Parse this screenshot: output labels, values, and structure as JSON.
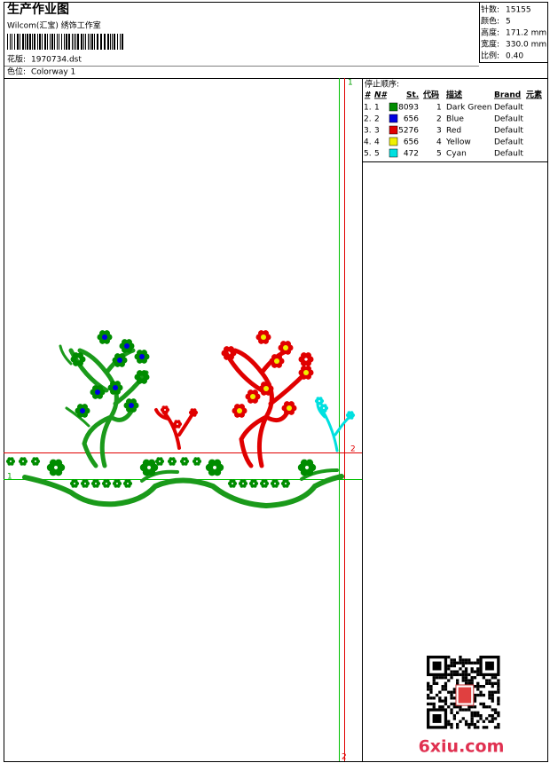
{
  "header": {
    "title": "生产作业图",
    "studio": "Wilcom(汇宝) 绣饰工作室",
    "design_label": "花版:",
    "design": "1970734.dst",
    "colorway_label": "色位:",
    "colorway": "Colorway 1"
  },
  "stats": [
    {
      "label": "针数:",
      "value": "15155"
    },
    {
      "label": "颜色:",
      "value": "5"
    },
    {
      "label": "高度:",
      "value": "171.2 mm"
    },
    {
      "label": "宽度:",
      "value": "330.0 mm"
    },
    {
      "label": "比例:",
      "value": "0.40"
    }
  ],
  "stop_sequence": {
    "title": "停止顺序:",
    "columns": [
      "#",
      "N#",
      "St.",
      "代码",
      "描述",
      "Brand",
      "元素"
    ],
    "rows": [
      {
        "index": "1.",
        "needle": "1",
        "color": "#008c00",
        "stitches": "8093",
        "code": "1",
        "description": "Dark Green",
        "brand": "Default"
      },
      {
        "index": "2.",
        "needle": "2",
        "color": "#0000e0",
        "stitches": "656",
        "code": "2",
        "description": "Blue",
        "brand": "Default"
      },
      {
        "index": "3.",
        "needle": "3",
        "color": "#e00000",
        "stitches": "5276",
        "code": "3",
        "description": "Red",
        "brand": "Default"
      },
      {
        "index": "4.",
        "needle": "4",
        "color": "#f0f000",
        "stitches": "656",
        "code": "4",
        "description": "Yellow",
        "brand": "Default"
      },
      {
        "index": "5.",
        "needle": "5",
        "color": "#00e0e0",
        "stitches": "472",
        "code": "5",
        "description": "Cyan",
        "brand": "Default"
      }
    ]
  },
  "guides": {
    "vertical_top": "1",
    "vertical_bottom": "2",
    "horizontal_red": "2",
    "horizontal_green": "1"
  },
  "watermark": "6xiu.com"
}
